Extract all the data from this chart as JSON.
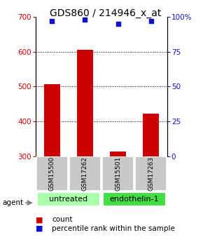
{
  "title": "GDS860 / 214946_x_at",
  "samples": [
    "GSM15500",
    "GSM17262",
    "GSM15501",
    "GSM17263"
  ],
  "group_labels": [
    "untreated",
    "endothelin-1"
  ],
  "bar_values": [
    507,
    605,
    313,
    422
  ],
  "pct_values": [
    97,
    98,
    95,
    97
  ],
  "bar_color": "#cc0000",
  "pct_color": "#1111cc",
  "ylim_left": [
    300,
    700
  ],
  "ylim_right": [
    0,
    100
  ],
  "yticks_left": [
    300,
    400,
    500,
    600,
    700
  ],
  "yticks_right": [
    0,
    25,
    50,
    75,
    100
  ],
  "yright_labels": [
    "0",
    "25",
    "50",
    "75",
    "100%"
  ],
  "sample_box_color": "#c8c8c8",
  "group_box_colors": [
    "#aaffaa",
    "#44dd44"
  ],
  "legend_count_label": "count",
  "legend_pct_label": "percentile rank within the sample",
  "agent_label": "agent",
  "background_color": "#ffffff",
  "title_fontsize": 10,
  "tick_fontsize": 7.5,
  "label_fontsize": 7.5,
  "sample_fontsize": 6.5,
  "group_fontsize": 8
}
